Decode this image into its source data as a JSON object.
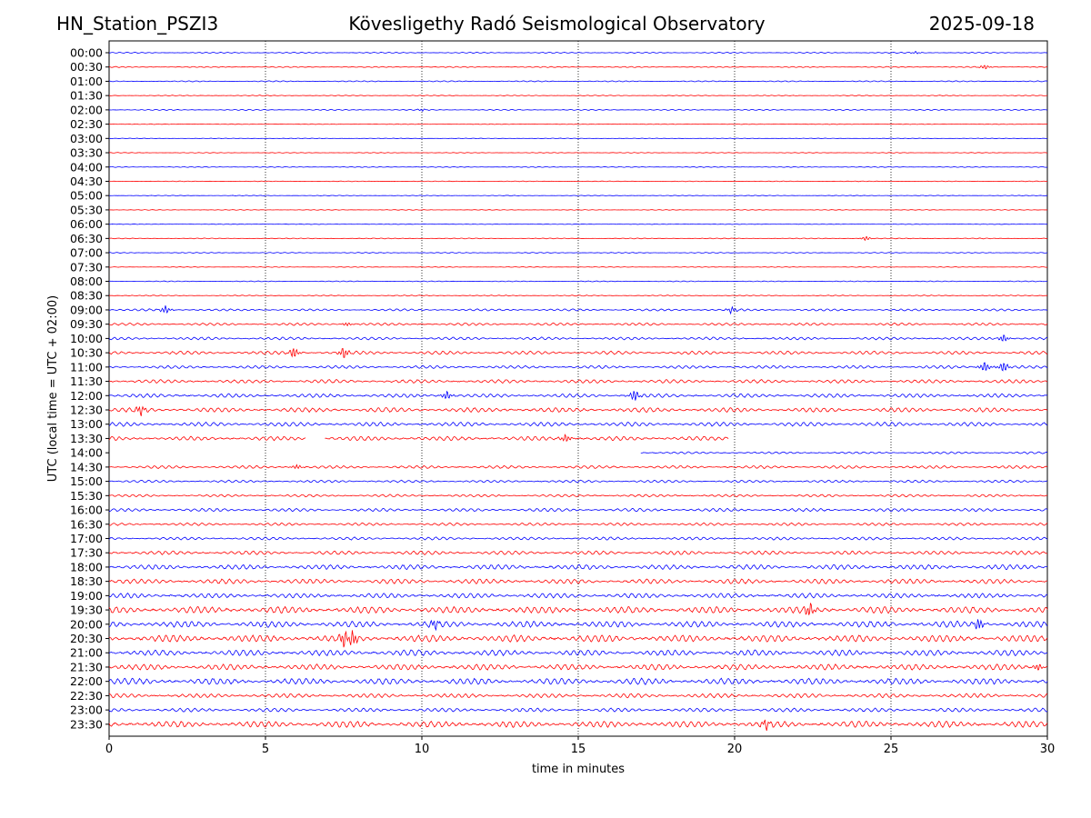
{
  "header": {
    "station": "HN_Station_PSZI3",
    "title": "Kövesligethy Radó Seismological Observatory",
    "date": "2025-09-18"
  },
  "chart_data": {
    "type": "line",
    "title": "Kövesligethy Radó Seismological Observatory",
    "xlabel": "time in minutes",
    "ylabel": "UTC (local time = UTC + 02:00)",
    "xlim": [
      0,
      30
    ],
    "x_ticks": [
      0,
      5,
      10,
      15,
      20,
      25,
      30
    ],
    "grid": "vertical dotted lines at 5-minute ticks",
    "colors": {
      "even_row": "#0000ff",
      "odd_row": "#ff0000",
      "grid": "#000000"
    },
    "rows": [
      "00:00",
      "00:30",
      "01:00",
      "01:30",
      "02:00",
      "02:30",
      "03:00",
      "03:30",
      "04:00",
      "04:30",
      "05:00",
      "05:30",
      "06:00",
      "06:30",
      "07:00",
      "07:30",
      "08:00",
      "08:30",
      "09:00",
      "09:30",
      "10:00",
      "10:30",
      "11:00",
      "11:30",
      "12:00",
      "12:30",
      "13:00",
      "13:30",
      "14:00",
      "14:30",
      "15:00",
      "15:30",
      "16:00",
      "16:30",
      "17:00",
      "17:30",
      "18:00",
      "18:30",
      "19:00",
      "19:30",
      "20:00",
      "20:30",
      "21:00",
      "21:30",
      "22:00",
      "22:30",
      "23:00",
      "23:30"
    ],
    "noise_level": [
      0.5,
      0.5,
      0.5,
      0.4,
      0.5,
      0.3,
      0.3,
      0.3,
      0.4,
      0.3,
      0.3,
      0.3,
      0.3,
      0.4,
      0.4,
      0.3,
      0.4,
      0.5,
      1.0,
      1.2,
      1.3,
      1.6,
      1.4,
      1.7,
      1.8,
      2.2,
      2.0,
      2.0,
      1.0,
      1.4,
      1.2,
      1.2,
      1.5,
      1.3,
      1.4,
      1.8,
      2.3,
      2.3,
      2.3,
      3.2,
      3.0,
      3.3,
      2.8,
      2.8,
      3.0,
      2.0,
      1.8,
      3.0
    ],
    "events": [
      {
        "row": "00:00",
        "minute": 25.8,
        "amp": 1.5
      },
      {
        "row": "00:30",
        "minute": 28.0,
        "amp": 3
      },
      {
        "row": "02:00",
        "minute": 10.0,
        "amp": 1.5
      },
      {
        "row": "06:30",
        "minute": 24.2,
        "amp": 3
      },
      {
        "row": "09:00",
        "minute": 1.8,
        "amp": 5
      },
      {
        "row": "09:00",
        "minute": 19.9,
        "amp": 4
      },
      {
        "row": "09:30",
        "minute": 7.6,
        "amp": 2.5
      },
      {
        "row": "10:00",
        "minute": 28.6,
        "amp": 5
      },
      {
        "row": "10:30",
        "minute": 5.9,
        "amp": 7
      },
      {
        "row": "10:30",
        "minute": 7.5,
        "amp": 7
      },
      {
        "row": "11:00",
        "minute": 28.0,
        "amp": 7
      },
      {
        "row": "11:00",
        "minute": 28.6,
        "amp": 7
      },
      {
        "row": "12:00",
        "minute": 10.8,
        "amp": 6
      },
      {
        "row": "12:00",
        "minute": 16.8,
        "amp": 8
      },
      {
        "row": "12:30",
        "minute": 1.0,
        "amp": 6
      },
      {
        "row": "13:30",
        "minute": 14.6,
        "amp": 5
      },
      {
        "row": "14:30",
        "minute": 6.0,
        "amp": 3
      },
      {
        "row": "19:30",
        "minute": 22.4,
        "amp": 9
      },
      {
        "row": "20:00",
        "minute": 27.8,
        "amp": 7
      },
      {
        "row": "20:00",
        "minute": 10.4,
        "amp": 6
      },
      {
        "row": "20:30",
        "minute": 7.5,
        "amp": 9
      },
      {
        "row": "20:30",
        "minute": 7.8,
        "amp": 9
      },
      {
        "row": "21:30",
        "minute": 29.7,
        "amp": 5
      },
      {
        "row": "23:30",
        "minute": 21.0,
        "amp": 6
      }
    ],
    "gaps": [
      {
        "row": "13:30",
        "from": 6.3,
        "to": 6.9
      },
      {
        "row": "13:30",
        "from": 19.8,
        "to": 30
      },
      {
        "row": "14:00",
        "from": 0,
        "to": 17.0
      }
    ]
  }
}
